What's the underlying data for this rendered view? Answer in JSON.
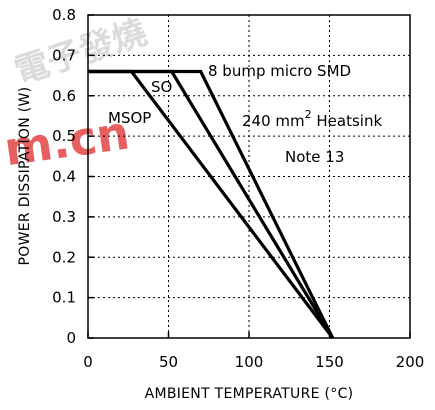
{
  "chart_data": {
    "type": "line",
    "title": "",
    "xlabel": "AMBIENT TEMPERATURE (°C)",
    "ylabel": "POWER DISSIPATION (W)",
    "xlim": [
      0,
      200
    ],
    "ylim": [
      0,
      0.8
    ],
    "x_ticks": [
      "0",
      "50",
      "100",
      "150",
      "200"
    ],
    "y_ticks": [
      "0",
      "0.1",
      "0.2",
      "0.3",
      "0.4",
      "0.5",
      "0.6",
      "0.7",
      "0.8"
    ],
    "grid": true,
    "series": [
      {
        "name": "MSOP",
        "points": [
          [
            -3,
            0.66
          ],
          [
            27,
            0.66
          ],
          [
            152,
            0
          ]
        ]
      },
      {
        "name": "SO",
        "points": [
          [
            -3,
            0.66
          ],
          [
            52,
            0.66
          ],
          [
            152,
            0
          ]
        ]
      },
      {
        "name": "8 bump micro SMD",
        "points": [
          [
            -3,
            0.66
          ],
          [
            70,
            0.66
          ],
          [
            152,
            0
          ]
        ]
      }
    ],
    "annotations": {
      "micro_smd": "8 bump micro SMD",
      "heatsink_prefix": "240 mm",
      "heatsink_sup": "2",
      "heatsink_suffix": " Heatsink",
      "note": "Note 13",
      "so": "SO",
      "msop": "MSOP"
    }
  },
  "watermark": {
    "text": "m.cn",
    "color": "#e03030",
    "chinese": "電子發燒"
  }
}
